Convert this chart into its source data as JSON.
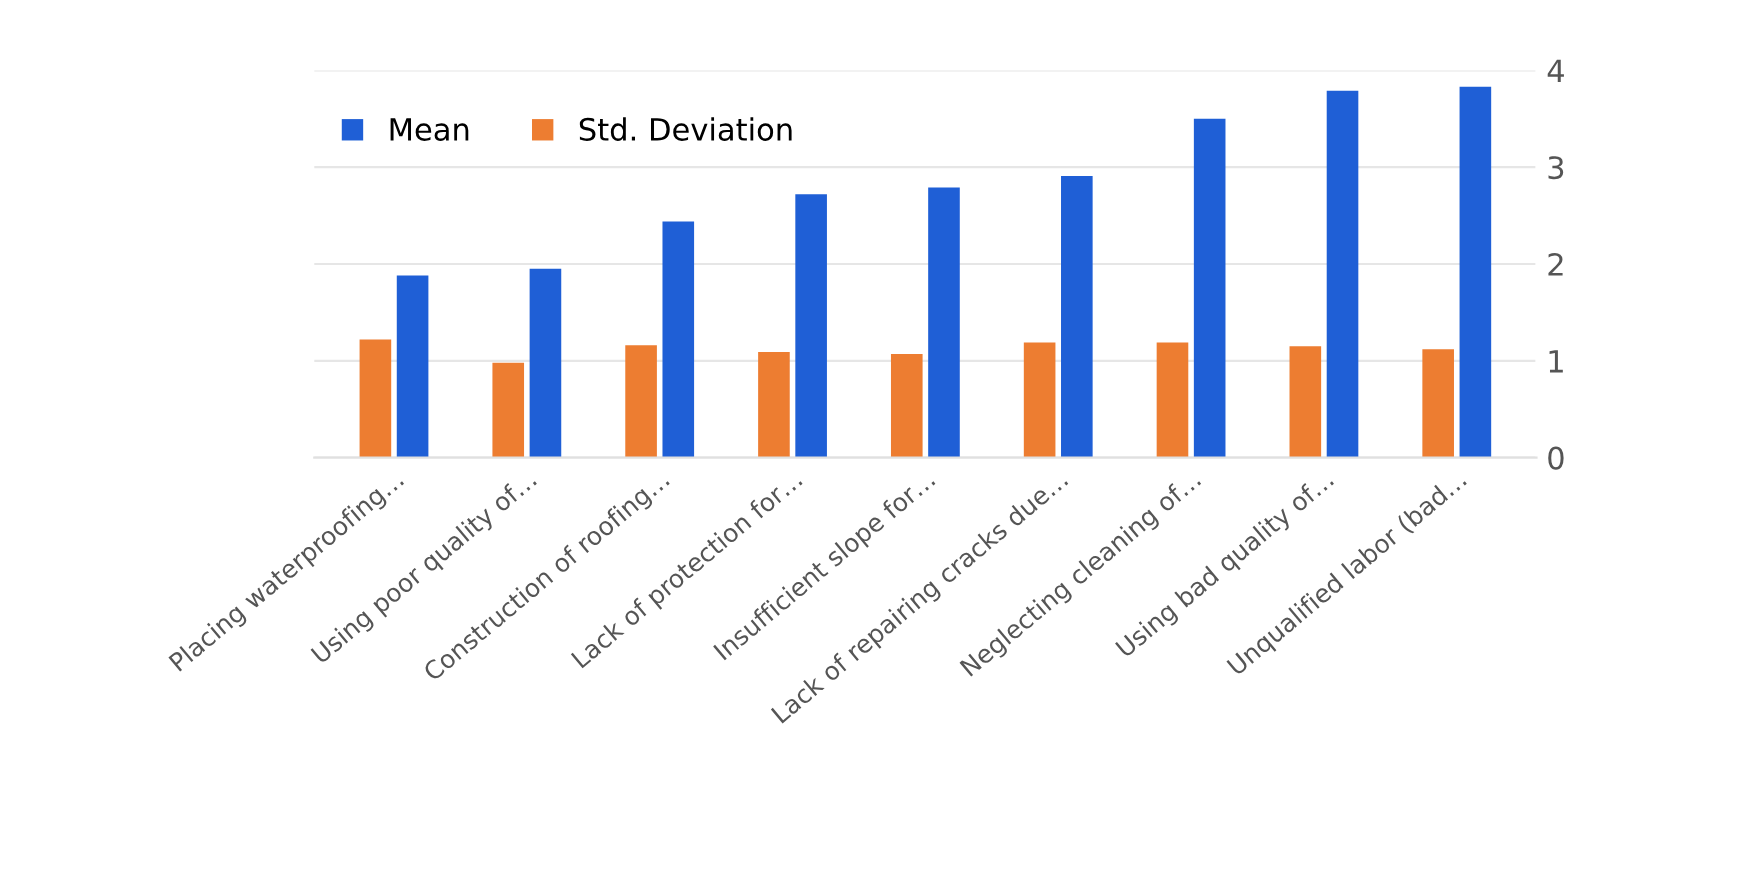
{
  "chart_data": {
    "type": "bar",
    "categories": [
      "Placing waterproofing…",
      "Using poor quality of…",
      "Construction of roofing…",
      "Lack of protection for…",
      "Insufficient slope for…",
      "Lack of repairing cracks due…",
      "Neglecting cleaning of…",
      "Using bad quality of…",
      "Unqualified labor (bad…"
    ],
    "series": [
      {
        "name": "Mean",
        "color": "#1f5fd6",
        "values": [
          1.88,
          1.95,
          2.44,
          2.72,
          2.79,
          2.91,
          3.5,
          3.79,
          3.83
        ]
      },
      {
        "name": "Std. Deviation",
        "color": "#ed7d31",
        "values": [
          1.22,
          0.98,
          1.16,
          1.09,
          1.07,
          1.19,
          1.19,
          1.15,
          1.12
        ]
      }
    ],
    "ylim": [
      0,
      4
    ],
    "yticks": [
      0,
      1,
      2,
      3,
      4
    ],
    "grid": "y",
    "legend": "top left"
  }
}
